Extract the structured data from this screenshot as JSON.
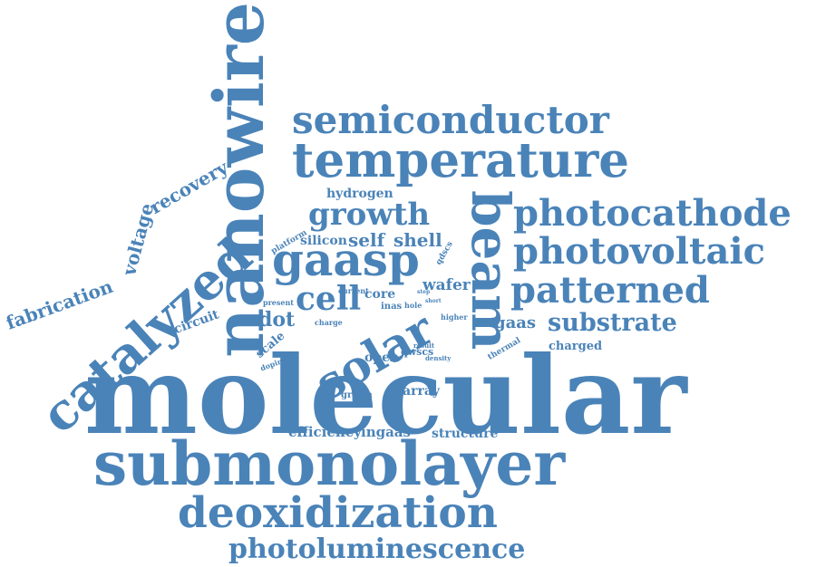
{
  "word_color": "#4a83b8",
  "words": [
    {
      "text": "molecular"
    },
    {
      "text": "submonolayer"
    },
    {
      "text": "nanowire"
    },
    {
      "text": "deoxidization"
    },
    {
      "text": "temperature"
    },
    {
      "text": "semiconductor"
    },
    {
      "text": "photocathode"
    },
    {
      "text": "photovoltaic"
    },
    {
      "text": "patterned"
    },
    {
      "text": "catalyzed"
    },
    {
      "text": "gaasp"
    },
    {
      "text": "solar"
    },
    {
      "text": "beam"
    },
    {
      "text": "photoluminescence"
    },
    {
      "text": "growth"
    },
    {
      "text": "cell"
    },
    {
      "text": "substrate"
    },
    {
      "text": "voltage"
    },
    {
      "text": "recovery"
    },
    {
      "text": "fabrication"
    },
    {
      "text": "self"
    },
    {
      "text": "shell"
    },
    {
      "text": "dot"
    },
    {
      "text": "wafer"
    },
    {
      "text": "efficiency"
    },
    {
      "text": "ingaas"
    },
    {
      "text": "structure"
    },
    {
      "text": "gaas"
    },
    {
      "text": "charged"
    },
    {
      "text": "hydrogen"
    },
    {
      "text": "silicon"
    },
    {
      "text": "circuit"
    },
    {
      "text": "core"
    },
    {
      "text": "open"
    },
    {
      "text": "array"
    },
    {
      "text": "scale"
    },
    {
      "text": "qwscs"
    },
    {
      "text": "grown"
    },
    {
      "text": "inas"
    },
    {
      "text": "hole"
    },
    {
      "text": "present"
    },
    {
      "text": "qdscs"
    },
    {
      "text": "thermal"
    },
    {
      "text": "higher"
    },
    {
      "text": "platform"
    },
    {
      "text": "current"
    },
    {
      "text": "charge"
    },
    {
      "text": "doping"
    },
    {
      "text": "density"
    },
    {
      "text": "result"
    },
    {
      "text": "step"
    },
    {
      "text": "short"
    }
  ]
}
